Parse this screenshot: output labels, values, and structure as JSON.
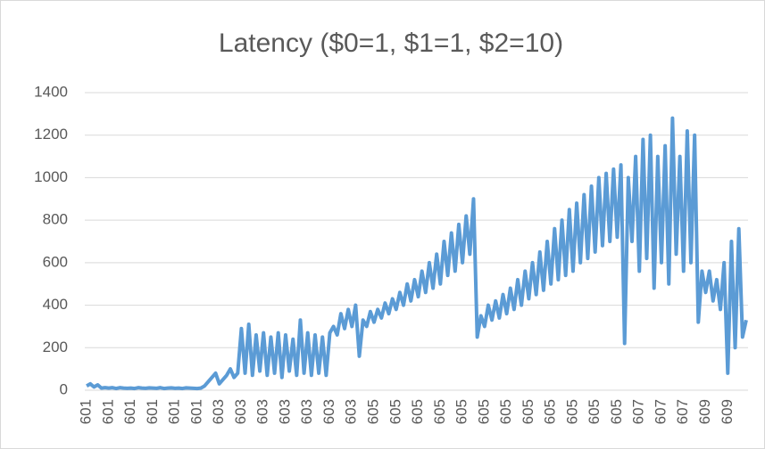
{
  "chart_data": {
    "type": "line",
    "title": "Latency ($0=1, $1=1, $2=10)",
    "categories": [
      "601",
      null,
      null,
      null,
      null,
      null,
      "601",
      null,
      null,
      null,
      null,
      null,
      "601",
      null,
      null,
      null,
      null,
      null,
      "601",
      null,
      null,
      null,
      null,
      null,
      "601",
      null,
      null,
      null,
      null,
      null,
      "601",
      null,
      null,
      null,
      null,
      null,
      "603",
      null,
      null,
      null,
      null,
      null,
      "603",
      null,
      null,
      null,
      null,
      null,
      "603",
      null,
      null,
      null,
      null,
      null,
      "603",
      null,
      null,
      null,
      null,
      null,
      "603",
      null,
      null,
      null,
      null,
      null,
      "603",
      null,
      null,
      null,
      null,
      null,
      "603",
      null,
      null,
      null,
      null,
      null,
      "605",
      null,
      null,
      null,
      null,
      null,
      "605",
      null,
      null,
      null,
      null,
      null,
      "605",
      null,
      null,
      null,
      null,
      null,
      "605",
      null,
      null,
      null,
      null,
      null,
      "605",
      null,
      null,
      null,
      null,
      null,
      "605",
      null,
      null,
      null,
      null,
      null,
      "605",
      null,
      null,
      null,
      null,
      null,
      "605",
      null,
      null,
      null,
      null,
      null,
      "605",
      null,
      null,
      null,
      null,
      null,
      "605",
      null,
      null,
      null,
      null,
      null,
      "605",
      null,
      null,
      null,
      null,
      null,
      "605",
      null,
      null,
      null,
      null,
      null,
      "607",
      null,
      null,
      null,
      null,
      null,
      "607",
      null,
      null,
      null,
      null,
      null,
      "607",
      null,
      null,
      null,
      null,
      null,
      "609",
      null,
      null,
      null,
      null,
      null,
      "609",
      null,
      null,
      null,
      null,
      null
    ],
    "series": [
      {
        "name": "Latency",
        "color": "#5b9bd5",
        "values": [
          20,
          30,
          15,
          25,
          10,
          12,
          10,
          12,
          8,
          12,
          10,
          9,
          10,
          8,
          12,
          10,
          9,
          11,
          10,
          9,
          12,
          8,
          10,
          11,
          9,
          10,
          8,
          11,
          10,
          9,
          8,
          10,
          20,
          40,
          60,
          80,
          30,
          50,
          70,
          100,
          60,
          80,
          290,
          80,
          310,
          70,
          260,
          90,
          270,
          70,
          250,
          80,
          270,
          60,
          260,
          90,
          240,
          70,
          330,
          80,
          270,
          70,
          260,
          80,
          250,
          70,
          270,
          300,
          260,
          360,
          290,
          380,
          300,
          400,
          160,
          330,
          300,
          370,
          320,
          380,
          340,
          410,
          360,
          430,
          380,
          460,
          400,
          500,
          420,
          520,
          440,
          560,
          460,
          600,
          480,
          640,
          500,
          700,
          540,
          740,
          560,
          780,
          600,
          820,
          640,
          900,
          250,
          350,
          300,
          400,
          330,
          420,
          340,
          450,
          360,
          480,
          380,
          520,
          400,
          560,
          430,
          600,
          450,
          650,
          470,
          700,
          500,
          760,
          520,
          800,
          540,
          850,
          560,
          880,
          600,
          920,
          620,
          960,
          650,
          1000,
          680,
          1020,
          700,
          1040,
          720,
          1060,
          220,
          1000,
          700,
          1100,
          560,
          1180,
          620,
          1200,
          480,
          1100,
          600,
          1150,
          500,
          1280,
          640,
          1100,
          560,
          1220,
          600,
          1200,
          320,
          560,
          460,
          560,
          420,
          520,
          380,
          600,
          80,
          700,
          200,
          760,
          250,
          330
        ]
      }
    ],
    "ylim": [
      0,
      1400
    ],
    "yticks": [
      0,
      200,
      400,
      600,
      800,
      1000,
      1200,
      1400
    ],
    "grid": true
  }
}
